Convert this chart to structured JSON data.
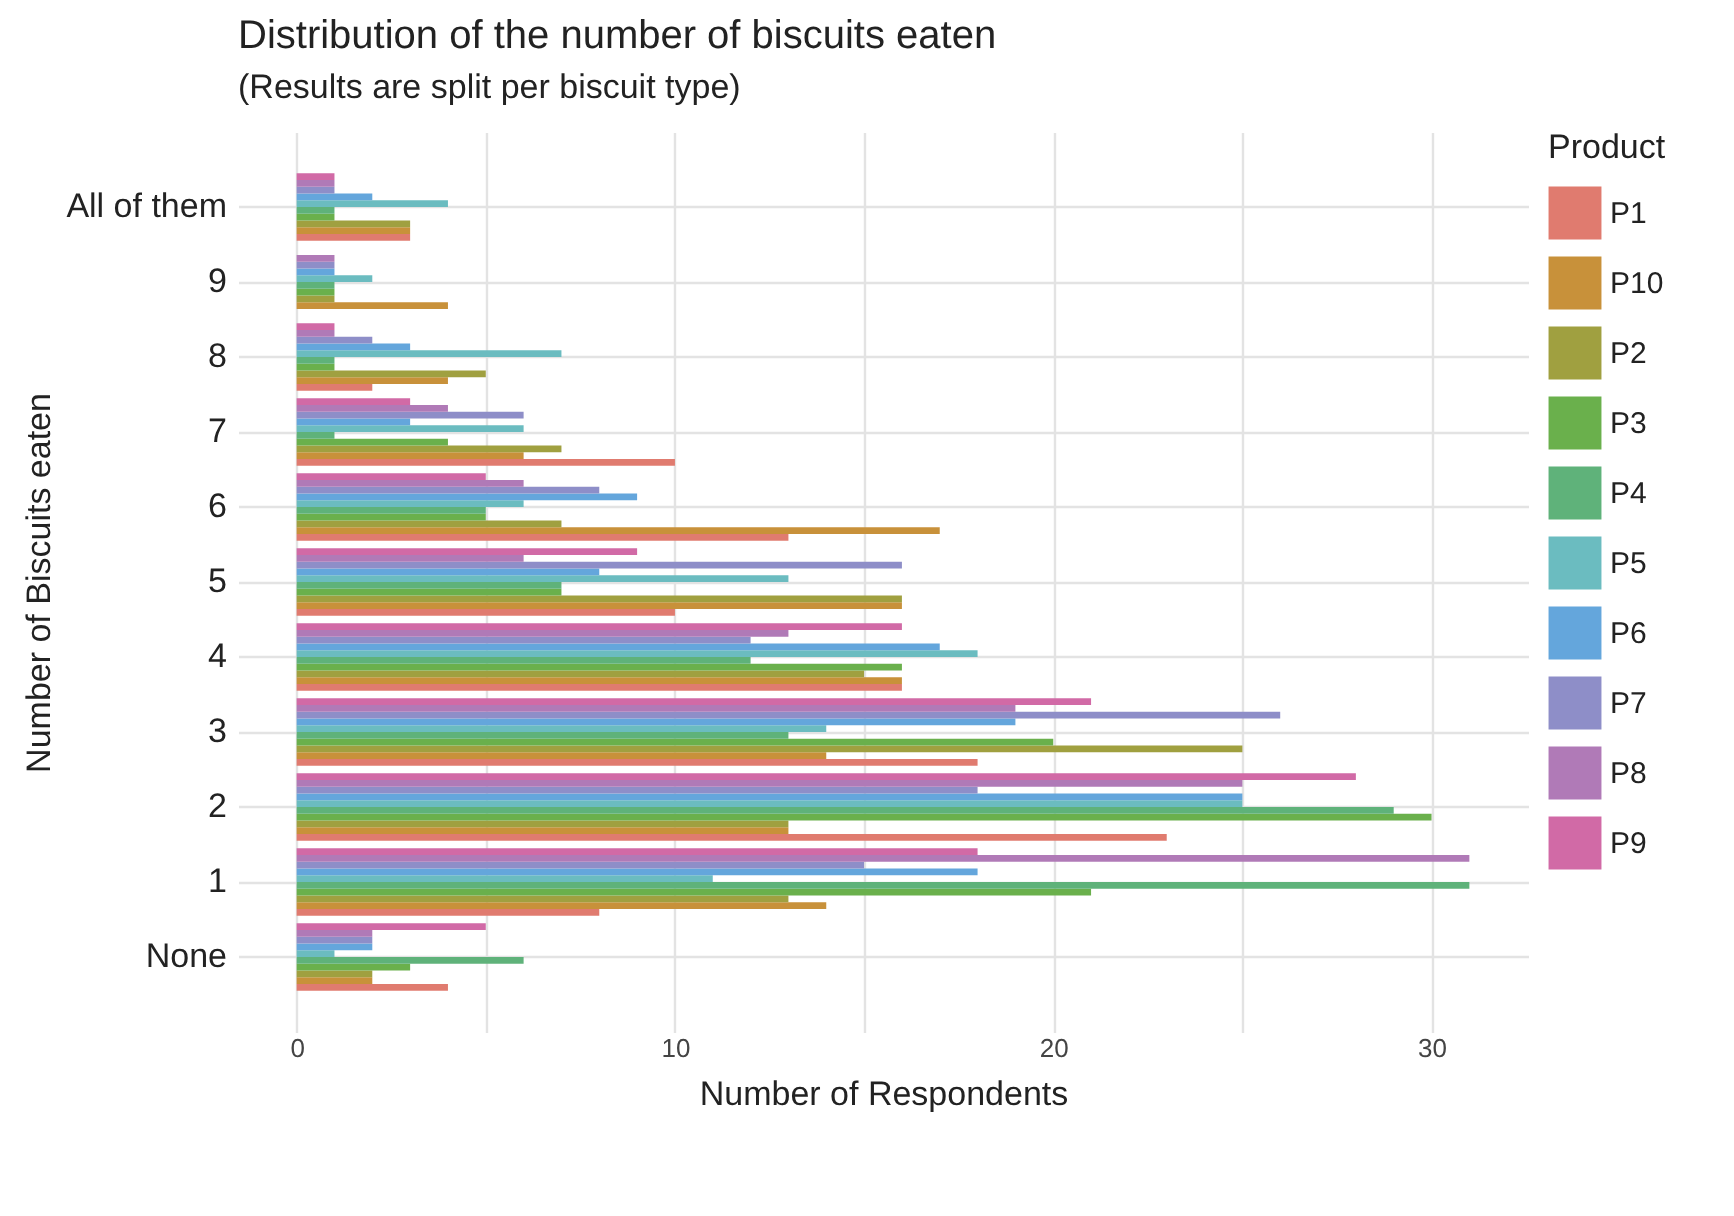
{
  "chart_data": {
    "type": "bar",
    "orientation": "horizontal",
    "title": "Distribution of the number of biscuits eaten",
    "subtitle": "(Results are split per biscuit type)",
    "xlabel": "Number of Respondents",
    "ylabel": "Number of Biscuits eaten",
    "legend_title": "Product",
    "legend": "right",
    "grid": true,
    "categories": [
      "All of them",
      "9",
      "8",
      "7",
      "6",
      "5",
      "4",
      "3",
      "2",
      "1",
      "None"
    ],
    "xlim": [
      -1.55,
      32.55
    ],
    "xticks": [
      0,
      {
        "value": 5,
        "label": null
      },
      10,
      {
        "value": 15,
        "label": null
      },
      20,
      {
        "value": 25,
        "label": null
      },
      30
    ],
    "series": [
      {
        "name": "P1",
        "color": "#e07b6f",
        "values": [
          3,
          0,
          2,
          10,
          13,
          10,
          16,
          18,
          23,
          8,
          4
        ]
      },
      {
        "name": "P10",
        "color": "#c8913a",
        "values": [
          3,
          4,
          4,
          6,
          17,
          16,
          16,
          14,
          13,
          14,
          2
        ]
      },
      {
        "name": "P2",
        "color": "#a0a040",
        "values": [
          3,
          1,
          5,
          7,
          7,
          16,
          15,
          25,
          13,
          13,
          2
        ]
      },
      {
        "name": "P3",
        "color": "#6ab04c",
        "values": [
          1,
          1,
          1,
          4,
          5,
          7,
          16,
          20,
          30,
          21,
          3
        ]
      },
      {
        "name": "P4",
        "color": "#5fb27a",
        "values": [
          1,
          1,
          1,
          1,
          5,
          7,
          12,
          13,
          29,
          31,
          6
        ]
      },
      {
        "name": "P5",
        "color": "#6bbcc0",
        "values": [
          4,
          2,
          7,
          6,
          6,
          13,
          18,
          14,
          25,
          11,
          1
        ]
      },
      {
        "name": "P6",
        "color": "#64a6dc",
        "values": [
          2,
          1,
          3,
          3,
          9,
          8,
          17,
          19,
          25,
          18,
          2
        ]
      },
      {
        "name": "P7",
        "color": "#8e8ec8",
        "values": [
          1,
          1,
          2,
          6,
          8,
          16,
          12,
          26,
          18,
          15,
          2
        ]
      },
      {
        "name": "P8",
        "color": "#b07ab7",
        "values": [
          1,
          1,
          1,
          4,
          6,
          6,
          13,
          19,
          25,
          31,
          2
        ]
      },
      {
        "name": "P9",
        "color": "#d16aa6",
        "values": [
          1,
          0,
          1,
          3,
          5,
          9,
          16,
          21,
          28,
          18,
          5
        ]
      }
    ]
  }
}
